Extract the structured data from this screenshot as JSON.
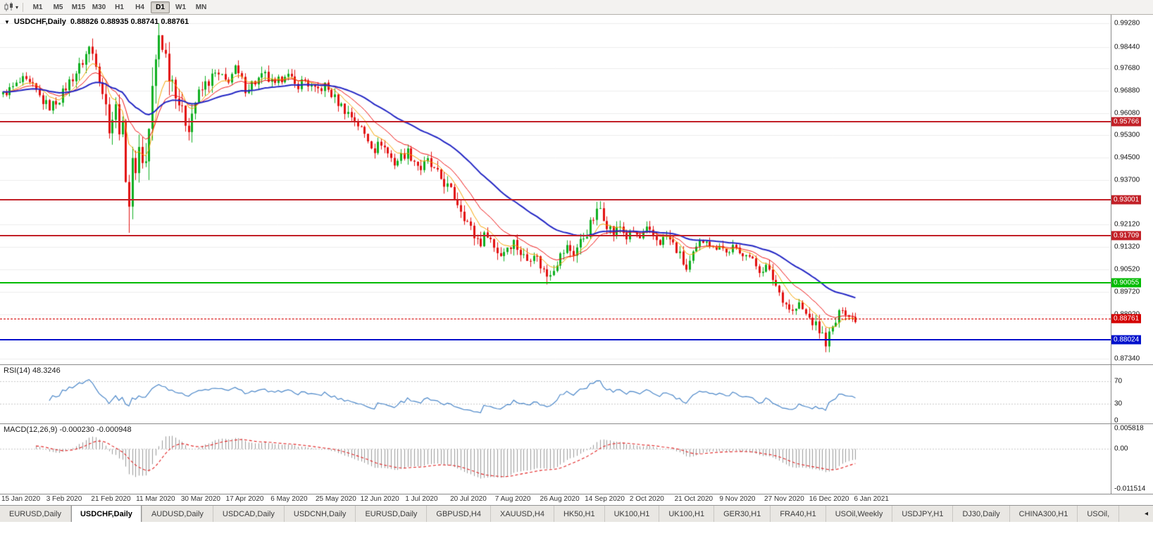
{
  "toolbar": {
    "timeframes": [
      "M1",
      "M5",
      "M15",
      "M30",
      "H1",
      "H4",
      "D1",
      "W1",
      "MN"
    ],
    "active_timeframe": "D1"
  },
  "chart": {
    "title": "USDCHF,Daily",
    "ohlc": {
      "open": "0.88826",
      "high": "0.88935",
      "low": "0.88741",
      "close": "0.88761"
    },
    "ohlc_display": "0.88826 0.88935 0.88741 0.88761",
    "price_axis_labels": [
      "0.99280",
      "0.98440",
      "0.97680",
      "0.96880",
      "0.96080",
      "0.95300",
      "0.94500",
      "0.93700",
      "0.92120",
      "0.91320",
      "0.90520",
      "0.89720",
      "0.88920",
      "0.87340"
    ],
    "levels": [
      {
        "value": 0.95766,
        "label": "0.95766",
        "color": "#c22027",
        "type": "resistance"
      },
      {
        "value": 0.93001,
        "label": "0.93001",
        "color": "#c22027",
        "type": "resistance"
      },
      {
        "value": 0.91709,
        "label": "0.91709",
        "color": "#c22027",
        "type": "resistance"
      },
      {
        "value": 0.90055,
        "label": "0.90055",
        "color": "#00bb00",
        "type": "support"
      },
      {
        "value": 0.88024,
        "label": "0.88024",
        "color": "#0011cc",
        "type": "support"
      }
    ],
    "current_price": {
      "value": 0.88761,
      "label": "0.88761",
      "color": "#d40000"
    }
  },
  "rsi_panel": {
    "label": "RSI(14) 48.3246",
    "axis_labels": [
      {
        "value": 70,
        "label": "70"
      },
      {
        "value": 30,
        "label": "30"
      },
      {
        "value": 0,
        "label": "0"
      }
    ],
    "guide_levels": [
      70,
      30
    ],
    "line_color": "#4a86c8",
    "ylim": [
      -5,
      100
    ]
  },
  "macd_panel": {
    "label": "MACD(12,26,9) -0.000230 -0.000948",
    "axis_labels": [
      {
        "value": 0.005818,
        "label": "0.005818"
      },
      {
        "value": 0,
        "label": "0.00"
      },
      {
        "value": -0.011514,
        "label": "-0.011514"
      }
    ],
    "histogram_color": "#9a9a9a",
    "signal_color": "#e02020",
    "ylim": [
      -0.013,
      0.0072
    ]
  },
  "date_axis": [
    "15 Jan 2020",
    "3 Feb 2020",
    "21 Feb 2020",
    "11 Mar 2020",
    "30 Mar 2020",
    "17 Apr 2020",
    "6 May 2020",
    "25 May 2020",
    "12 Jun 2020",
    "1 Jul 2020",
    "20 Jul 2020",
    "7 Aug 2020",
    "26 Aug 2020",
    "14 Sep 2020",
    "2 Oct 2020",
    "21 Oct 2020",
    "9 Nov 2020",
    "27 Nov 2020",
    "16 Dec 2020",
    "6 Jan 2021"
  ],
  "tabs": {
    "scroll_left_icon": "◂",
    "items": [
      {
        "label": "EURUSD,Daily",
        "active": false
      },
      {
        "label": "USDCHF,Daily",
        "active": true
      },
      {
        "label": "AUDUSD,Daily",
        "active": false
      },
      {
        "label": "USDCAD,Daily",
        "active": false
      },
      {
        "label": "USDCNH,Daily",
        "active": false
      },
      {
        "label": "EURUSD,Daily",
        "active": false
      },
      {
        "label": "GBPUSD,H4",
        "active": false
      },
      {
        "label": "XAUUSD,H4",
        "active": false
      },
      {
        "label": "HK50,H1",
        "active": false
      },
      {
        "label": "UK100,H1",
        "active": false
      },
      {
        "label": "UK100,H1",
        "active": false
      },
      {
        "label": "GER30,H1",
        "active": false
      },
      {
        "label": "FRA40,H1",
        "active": false
      },
      {
        "label": "USOil,Weekly",
        "active": false
      },
      {
        "label": "USDJPY,H1",
        "active": false
      },
      {
        "label": "DJ30,Daily",
        "active": false
      },
      {
        "label": "CHINA300,H1",
        "active": false
      },
      {
        "label": "USOil,",
        "active": false
      }
    ]
  },
  "chart_data": {
    "type": "candlestick",
    "symbol": "USDCHF",
    "timeframe": "D1",
    "ylim": [
      0.87139,
      0.99581
    ],
    "num_candles": 258,
    "first_bar_x": 4,
    "bar_spacing_px": 4.71,
    "bull_color": "#0faf20",
    "bear_color": "#e21010",
    "ma_lines": [
      {
        "period": 8,
        "color": "#f5a300",
        "width": 1
      },
      {
        "period": 16,
        "color": "#ee1111",
        "width": 1
      },
      {
        "period": 42,
        "color": "#2326c4",
        "width": 2
      }
    ],
    "indicators": {
      "rsi_period": 14,
      "macd": [
        12,
        26,
        9
      ]
    },
    "close_anchors": [
      [
        0,
        0.9675
      ],
      [
        3,
        0.97
      ],
      [
        6,
        0.9725
      ],
      [
        9,
        0.97
      ],
      [
        12,
        0.965
      ],
      [
        14,
        0.963
      ],
      [
        17,
        0.966
      ],
      [
        20,
        0.972
      ],
      [
        23,
        0.977
      ],
      [
        26,
        0.984
      ],
      [
        28,
        0.98
      ],
      [
        30,
        0.969
      ],
      [
        32,
        0.957
      ],
      [
        34,
        0.962
      ],
      [
        36,
        0.953
      ],
      [
        38,
        0.93
      ],
      [
        39,
        0.94
      ],
      [
        41,
        0.948
      ],
      [
        43,
        0.943
      ],
      [
        45,
        0.968
      ],
      [
        47,
        0.989
      ],
      [
        48,
        0.986
      ],
      [
        50,
        0.976
      ],
      [
        52,
        0.97
      ],
      [
        54,
        0.96
      ],
      [
        56,
        0.957
      ],
      [
        58,
        0.965
      ],
      [
        61,
        0.971
      ],
      [
        64,
        0.9745
      ],
      [
        67,
        0.972
      ],
      [
        70,
        0.976
      ],
      [
        73,
        0.97
      ],
      [
        76,
        0.972
      ],
      [
        79,
        0.974
      ],
      [
        82,
        0.97
      ],
      [
        85,
        0.9755
      ],
      [
        88,
        0.9705
      ],
      [
        91,
        0.9725
      ],
      [
        94,
        0.9685
      ],
      [
        97,
        0.9705
      ],
      [
        100,
        0.966
      ],
      [
        103,
        0.962
      ],
      [
        106,
        0.9585
      ],
      [
        108,
        0.955
      ],
      [
        110,
        0.9515
      ],
      [
        112,
        0.948
      ],
      [
        114,
        0.9505
      ],
      [
        116,
        0.9465
      ],
      [
        118,
        0.943
      ],
      [
        120,
        0.9455
      ],
      [
        122,
        0.947
      ],
      [
        124,
        0.944
      ],
      [
        126,
        0.941
      ],
      [
        128,
        0.9435
      ],
      [
        130,
        0.94
      ],
      [
        132,
        0.9375
      ],
      [
        134,
        0.9345
      ],
      [
        136,
        0.931
      ],
      [
        138,
        0.927
      ],
      [
        140,
        0.922
      ],
      [
        142,
        0.917
      ],
      [
        144,
        0.915
      ],
      [
        146,
        0.9185
      ],
      [
        148,
        0.913
      ],
      [
        150,
        0.9105
      ],
      [
        152,
        0.9135
      ],
      [
        154,
        0.915
      ],
      [
        156,
        0.911
      ],
      [
        158,
        0.9085
      ],
      [
        160,
        0.9115
      ],
      [
        162,
        0.9065
      ],
      [
        164,
        0.903
      ],
      [
        166,
        0.906
      ],
      [
        168,
        0.91
      ],
      [
        170,
        0.913
      ],
      [
        172,
        0.911
      ],
      [
        174,
        0.915
      ],
      [
        176,
        0.9185
      ],
      [
        178,
        0.9235
      ],
      [
        180,
        0.927
      ],
      [
        182,
        0.9215
      ],
      [
        184,
        0.918
      ],
      [
        186,
        0.9205
      ],
      [
        188,
        0.9165
      ],
      [
        190,
        0.9185
      ],
      [
        192,
        0.916
      ],
      [
        194,
        0.919
      ],
      [
        196,
        0.917
      ],
      [
        198,
        0.915
      ],
      [
        200,
        0.917
      ],
      [
        202,
        0.914
      ],
      [
        204,
        0.91
      ],
      [
        206,
        0.905
      ],
      [
        208,
        0.91
      ],
      [
        210,
        0.9145
      ],
      [
        212,
        0.9165
      ],
      [
        214,
        0.9125
      ],
      [
        216,
        0.9145
      ],
      [
        218,
        0.911
      ],
      [
        220,
        0.913
      ],
      [
        222,
        0.9105
      ],
      [
        224,
        0.9115
      ],
      [
        226,
        0.908
      ],
      [
        228,
        0.905
      ],
      [
        230,
        0.906
      ],
      [
        232,
        0.902
      ],
      [
        234,
        0.897
      ],
      [
        236,
        0.893
      ],
      [
        238,
        0.89
      ],
      [
        240,
        0.8925
      ],
      [
        242,
        0.889
      ],
      [
        244,
        0.8865
      ],
      [
        246,
        0.8835
      ],
      [
        248,
        0.8795
      ],
      [
        250,
        0.884
      ],
      [
        252,
        0.889
      ],
      [
        253,
        0.892
      ],
      [
        255,
        0.8885
      ],
      [
        257,
        0.8876
      ]
    ],
    "volatility_anchors": [
      [
        0,
        0.0035
      ],
      [
        20,
        0.0045
      ],
      [
        28,
        0.0075
      ],
      [
        34,
        0.01
      ],
      [
        38,
        0.016
      ],
      [
        44,
        0.014
      ],
      [
        48,
        0.012
      ],
      [
        55,
        0.009
      ],
      [
        62,
        0.006
      ],
      [
        80,
        0.005
      ],
      [
        100,
        0.0045
      ],
      [
        120,
        0.0045
      ],
      [
        138,
        0.0055
      ],
      [
        150,
        0.005
      ],
      [
        165,
        0.0045
      ],
      [
        178,
        0.0055
      ],
      [
        190,
        0.004
      ],
      [
        205,
        0.0045
      ],
      [
        225,
        0.0035
      ],
      [
        235,
        0.0045
      ],
      [
        248,
        0.005
      ],
      [
        257,
        0.0035
      ]
    ],
    "extremes": [
      {
        "day": 26,
        "high": 0.9848
      },
      {
        "day": 38,
        "low": 0.9182
      },
      {
        "day": 47,
        "high": 0.9928
      },
      {
        "day": 55,
        "low": 0.955
      },
      {
        "day": 164,
        "low": 0.8998
      },
      {
        "day": 180,
        "high": 0.9295
      },
      {
        "day": 206,
        "low": 0.9043
      },
      {
        "day": 248,
        "low": 0.8757
      }
    ]
  }
}
